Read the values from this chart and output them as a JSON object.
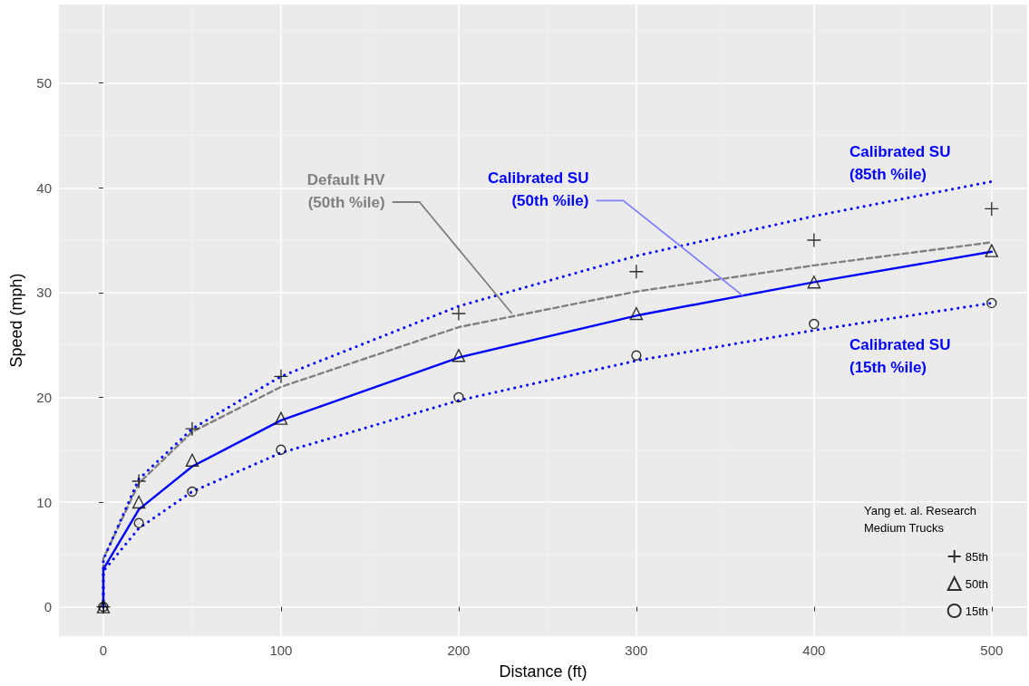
{
  "chart_data": {
    "type": "line",
    "xlabel": "Distance (ft)",
    "ylabel": "Speed (mph)",
    "legend_title": "Yang et. al. Research\nMedium Trucks",
    "xlim": [
      -25,
      520
    ],
    "ylim": [
      -2.8,
      57.5
    ],
    "xticks": [
      0,
      100,
      200,
      300,
      400,
      500
    ],
    "yticks": [
      0,
      10,
      20,
      30,
      40,
      50
    ],
    "grid": true,
    "legend": "bottom right",
    "series": [
      {
        "color": "#808080",
        "line_style": "dashed",
        "marker": "none",
        "x": [
          0,
          0,
          20,
          50,
          100,
          200,
          300,
          400,
          500
        ],
        "values": [
          0,
          4.6,
          11.8,
          16.7,
          21,
          26.7,
          30.1,
          32.6,
          34.8
        ]
      },
      {
        "color": "#0000ff",
        "line_style": "dotted",
        "marker": "none",
        "x": [
          0,
          0,
          20,
          50,
          100,
          200,
          300,
          400,
          500
        ],
        "values": [
          0,
          4.5,
          12.2,
          17,
          22,
          28.7,
          33.5,
          37.3,
          40.6
        ]
      },
      {
        "color": "#0000ff",
        "line_style": "solid",
        "marker": "none",
        "x": [
          0,
          0,
          20,
          50,
          100,
          200,
          300,
          400,
          500
        ],
        "values": [
          0,
          3.6,
          9.3,
          13.4,
          17.8,
          23.8,
          27.8,
          31,
          33.9
        ]
      },
      {
        "color": "#0000ff",
        "line_style": "dotted",
        "marker": "none",
        "x": [
          0,
          0,
          20,
          50,
          100,
          200,
          300,
          400,
          500
        ],
        "values": [
          0,
          3.4,
          7.5,
          11,
          14.7,
          19.7,
          23.5,
          26.4,
          29
        ]
      },
      {
        "type": "scatter",
        "name": "85th",
        "color": "#000000",
        "marker": "cross",
        "x": [
          0,
          20,
          50,
          100,
          200,
          300,
          400,
          500
        ],
        "values": [
          0,
          12,
          17,
          22,
          28,
          32,
          35,
          38
        ]
      },
      {
        "type": "scatter",
        "name": "50th",
        "color": "#000000",
        "marker": "triangle",
        "x": [
          0,
          20,
          50,
          100,
          200,
          300,
          400,
          500
        ],
        "values": [
          0,
          10,
          14,
          18,
          24,
          28,
          31,
          34
        ]
      },
      {
        "type": "scatter",
        "name": "15th",
        "color": "#000000",
        "marker": "circle",
        "x": [
          0,
          20,
          50,
          100,
          200,
          300,
          400,
          500
        ],
        "values": [
          0,
          8,
          11,
          15,
          20,
          24,
          27,
          29
        ]
      }
    ],
    "annotations": [
      {
        "text": "Default HV\n(50th %ile)",
        "x": 230,
        "y": 28
      },
      {
        "text": "Calibrated SU\n(50th %ile)",
        "x": 360,
        "y": 29.7
      },
      "Calibrated SU\n(85th %ile)",
      "Calibrated SU\n(15th %ile)"
    ]
  }
}
